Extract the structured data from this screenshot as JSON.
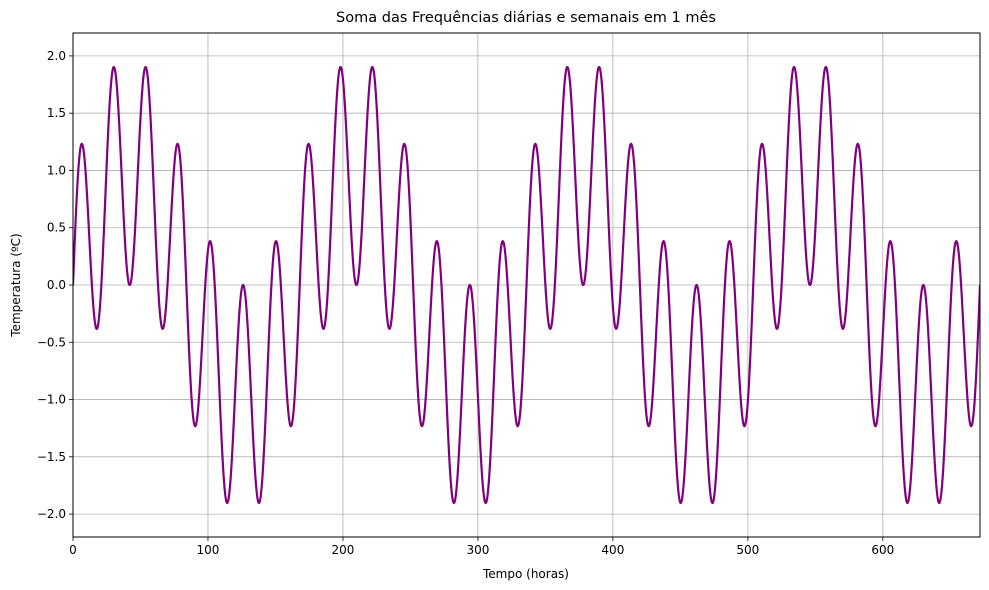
{
  "chart_data": {
    "type": "line",
    "title": "Soma das Frequências diárias e semanais em 1 mês",
    "xlabel": "Tempo (horas)",
    "ylabel": "Temperatura (ºC)",
    "xlim": [
      0,
      672
    ],
    "ylim": [
      -2.2,
      2.2
    ],
    "xticks": [
      0,
      100,
      200,
      300,
      400,
      500,
      600
    ],
    "yticks": [
      -2.0,
      -1.5,
      -1.0,
      -0.5,
      0.0,
      0.5,
      1.0,
      1.5,
      2.0
    ],
    "xtick_labels": [
      "0",
      "100",
      "200",
      "300",
      "400",
      "500",
      "600"
    ],
    "ytick_labels": [
      "−2.0",
      "−1.5",
      "−1.0",
      "−0.5",
      "0.0",
      "0.5",
      "1.0",
      "1.5",
      "2.0"
    ],
    "grid": true,
    "series": [
      {
        "color": "#800080",
        "function": "sin(2*pi*t/24) + sin(2*pi*t/168)",
        "t_start": 0,
        "t_end": 672
      }
    ]
  }
}
